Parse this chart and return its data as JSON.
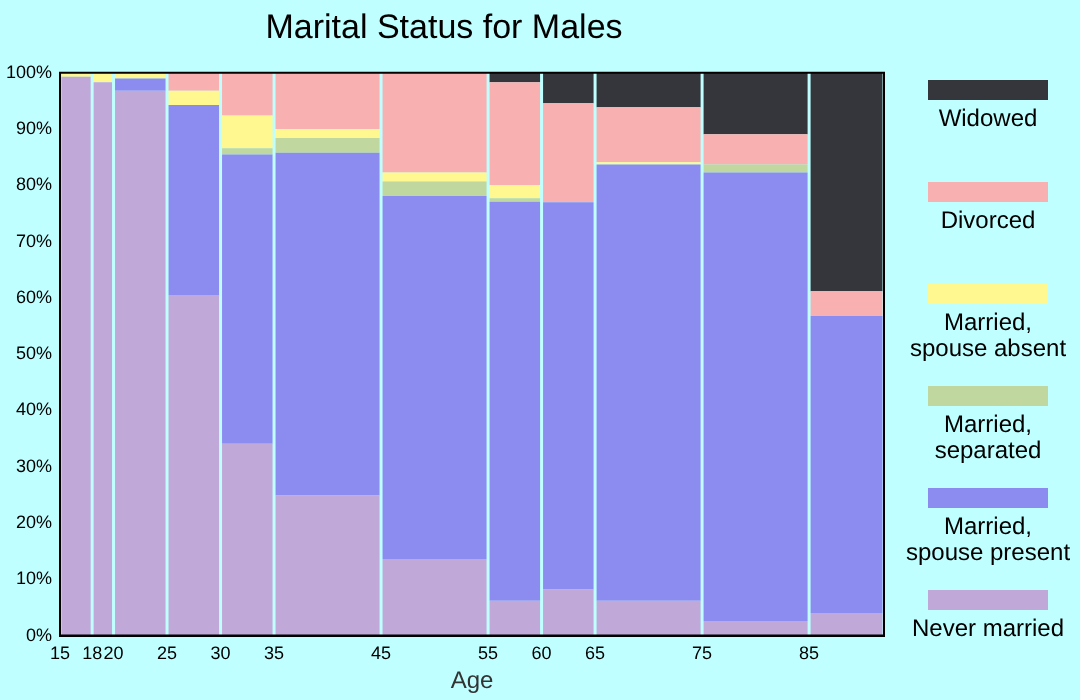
{
  "chart_data": {
    "type": "bar",
    "title": "Marital Status for Males",
    "xlabel": "Age",
    "stacked": true,
    "legend": "right",
    "grid": false,
    "x": [
      16.5,
      19,
      22.5,
      27.5,
      32.5,
      40,
      50,
      57.5,
      62.5,
      70,
      80,
      88.5
    ],
    "xlim": [
      15,
      92
    ],
    "xticks": [
      15,
      18,
      20,
      25,
      30,
      35,
      45,
      55,
      60,
      65,
      75,
      85
    ],
    "ylim": [
      0,
      100
    ],
    "yticks": [
      {
        "value": 0,
        "label": "0%"
      },
      {
        "value": 10,
        "label": "10%"
      },
      {
        "value": 20,
        "label": "20%"
      },
      {
        "value": 30,
        "label": "30%"
      },
      {
        "value": 40,
        "label": "40%"
      },
      {
        "value": 50,
        "label": "50%"
      },
      {
        "value": 60,
        "label": "60%"
      },
      {
        "value": 70,
        "label": "70%"
      },
      {
        "value": 80,
        "label": "80%"
      },
      {
        "value": 90,
        "label": "90%"
      },
      {
        "value": 100,
        "label": "100%"
      }
    ],
    "series": [
      {
        "name": "Never married",
        "color": "#c0a8d8",
        "values": [
          99.3,
          98.3,
          96.8,
          60.5,
          34.1,
          24.9,
          13.6,
          6.2,
          8.2,
          6.2,
          2.6,
          4.0
        ]
      },
      {
        "name": "Married, spouse present",
        "color": "#8c8cf0",
        "values": [
          0,
          0,
          2.2,
          33.8,
          51.4,
          60.9,
          64.5,
          70.9,
          68.8,
          77.5,
          79.7,
          52.8
        ]
      },
      {
        "name": "Married, separated",
        "color": "#c0d8a0",
        "values": [
          0,
          0,
          0,
          0,
          1.1,
          2.6,
          2.6,
          0.6,
          0,
          0,
          1.4,
          0
        ]
      },
      {
        "name": "Married, spouse absent",
        "color": "#fff890",
        "values": [
          0.7,
          1.7,
          1.0,
          2.5,
          5.8,
          1.6,
          1.6,
          2.3,
          0,
          0.4,
          0,
          0
        ]
      },
      {
        "name": "Divorced",
        "color": "#f8b0b0",
        "values": [
          0,
          0,
          0,
          3.2,
          7.6,
          10.0,
          17.7,
          18.3,
          17.6,
          9.8,
          5.4,
          4.4
        ]
      },
      {
        "name": "Widowed",
        "color": "#35363b",
        "values": [
          0,
          0,
          0,
          0,
          0,
          0,
          0,
          1.7,
          5.4,
          6.1,
          10.9,
          38.8
        ]
      }
    ]
  }
}
